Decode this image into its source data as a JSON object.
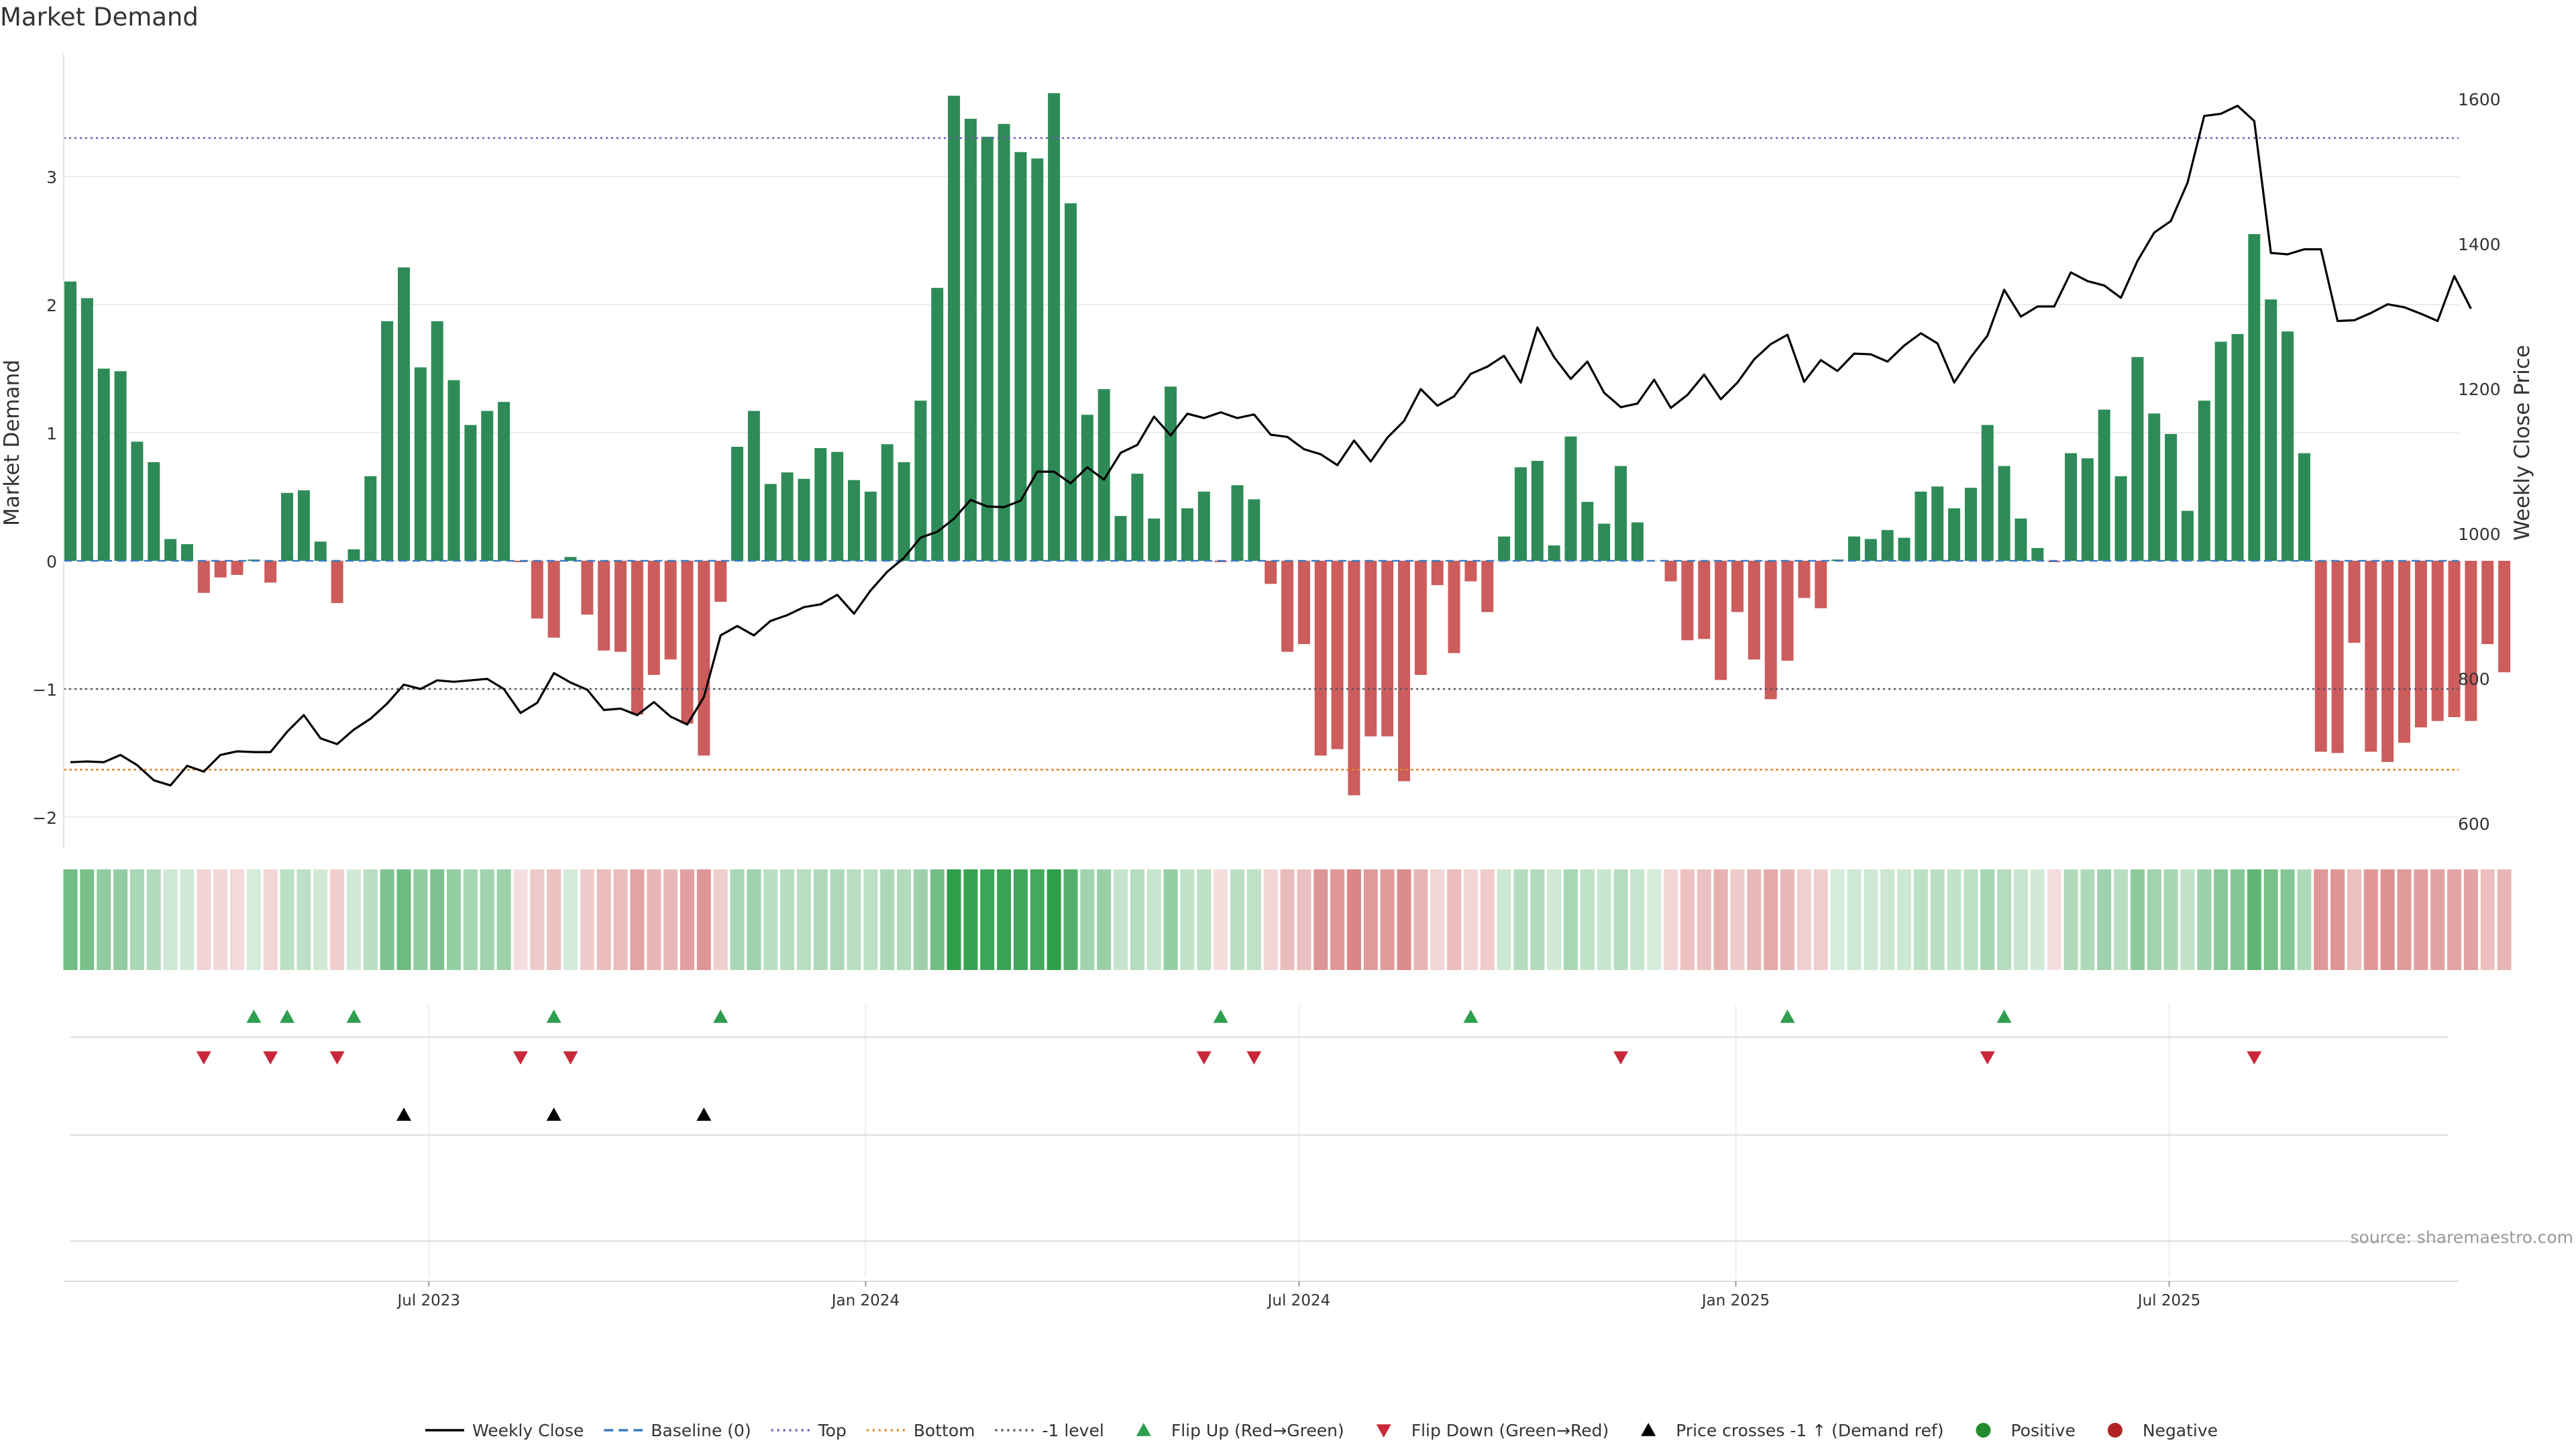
{
  "chart_data": {
    "type": "bar",
    "title": "Market Demand",
    "ylabel": "Market Demand",
    "y2label": "Weekly Close Price",
    "ylim": [
      -2.2,
      3.8
    ],
    "yticks": [
      -2,
      -1,
      0,
      1,
      2,
      3
    ],
    "ytick_labels": [
      "−2",
      "−1",
      "0",
      "1",
      "2",
      "3"
    ],
    "y2lim": [
      600,
      1640
    ],
    "y2ticks": [
      600,
      800,
      1000,
      1200,
      1400,
      1600
    ],
    "y2tick_labels": [
      "600",
      "800",
      "1000",
      "1200",
      "1400",
      "1600"
    ],
    "xtick_labels": [
      "Jul 2023",
      "Jan 2024",
      "Jul 2024",
      "Jan 2025",
      "Jul 2025"
    ],
    "xtick_weeks": [
      21.5,
      47.7,
      73.7,
      99.9,
      125.9
    ],
    "reference_lines": {
      "top": 3.3,
      "minus_one": -1.0,
      "bottom": -1.63,
      "baseline": 0
    },
    "series": [
      {
        "name": "Market Demand",
        "values": [
          2.18,
          2.05,
          1.5,
          1.48,
          0.93,
          0.77,
          0.17,
          0.13,
          -0.25,
          -0.13,
          -0.11,
          0.01,
          -0.17,
          0.53,
          0.55,
          0.15,
          -0.33,
          0.09,
          0.66,
          1.87,
          2.29,
          1.51,
          1.87,
          1.41,
          1.06,
          1.17,
          1.24,
          -0.01,
          -0.45,
          -0.6,
          0.03,
          -0.42,
          -0.7,
          -0.71,
          -1.2,
          -0.89,
          -0.77,
          -1.27,
          -1.52,
          -0.32,
          0.89,
          1.17,
          0.6,
          0.69,
          0.64,
          0.88,
          0.85,
          0.63,
          0.54,
          0.91,
          0.77,
          1.25,
          2.13,
          3.63,
          3.45,
          3.31,
          3.41,
          3.19,
          3.14,
          3.65,
          2.79,
          1.14,
          1.34,
          0.35,
          0.68,
          0.33,
          1.36,
          0.41,
          0.54,
          -0.01,
          0.59,
          0.48,
          -0.18,
          -0.71,
          -0.65,
          -1.52,
          -1.47,
          -1.83,
          -1.37,
          -1.37,
          -1.72,
          -0.89,
          -0.19,
          -0.72,
          -0.16,
          -0.4,
          0.19,
          0.73,
          0.78,
          0.12,
          0.97,
          0.46,
          0.29,
          0.74,
          0.3,
          0.0,
          -0.16,
          -0.62,
          -0.61,
          -0.93,
          -0.4,
          -0.77,
          -1.08,
          -0.78,
          -0.29,
          -0.37,
          0.01,
          0.19,
          0.17,
          0.24,
          0.18,
          0.54,
          0.58,
          0.41,
          0.57,
          1.06,
          0.74,
          0.33,
          0.1,
          -0.01,
          0.84,
          0.8,
          1.18,
          0.66,
          1.59,
          1.15,
          0.99,
          0.39,
          1.25,
          1.71,
          1.77,
          2.55,
          2.04,
          1.79,
          0.84,
          -1.49,
          -1.5,
          -0.64,
          -1.49,
          -1.57,
          -1.42,
          -1.3,
          -1.25,
          -1.22,
          -1.25,
          -0.65,
          -0.87
        ]
      },
      {
        "name": "Weekly Close",
        "values": [
          685,
          686,
          685,
          695,
          681,
          660,
          653,
          680,
          672,
          695,
          700,
          699,
          699,
          727,
          750,
          718,
          710,
          730,
          745,
          766,
          792,
          786,
          798,
          796,
          798,
          800,
          786,
          753,
          767,
          808,
          795,
          785,
          757,
          759,
          750,
          768,
          748,
          737,
          775,
          860,
          873,
          860,
          880,
          888,
          899,
          903,
          916,
          890,
          922,
          948,
          967,
          995,
          1003,
          1021,
          1047,
          1038,
          1037,
          1046,
          1086,
          1086,
          1070,
          1092,
          1075,
          1112,
          1123,
          1162,
          1136,
          1166,
          1160,
          1168,
          1160,
          1165,
          1137,
          1134,
          1117,
          1110,
          1095,
          1129,
          1100,
          1133,
          1156,
          1200,
          1177,
          1190,
          1221,
          1231,
          1246,
          1209,
          1285,
          1244,
          1214,
          1238,
          1195,
          1175,
          1180,
          1213,
          1174,
          1192,
          1220,
          1186,
          1209,
          1241,
          1262,
          1275,
          1210,
          1240,
          1225,
          1249,
          1248,
          1238,
          1260,
          1277,
          1263,
          1209,
          1244,
          1274,
          1337,
          1300,
          1314,
          1314,
          1361,
          1349,
          1343,
          1326,
          1377,
          1416,
          1432,
          1485,
          1577,
          1580,
          1591,
          1570,
          1388,
          1386,
          1393,
          1393,
          1294,
          1295,
          1305,
          1317,
          1313,
          1304,
          1294,
          1356,
          1311
        ]
      }
    ],
    "panels": {
      "flip_up_weeks": [
        11,
        13,
        17,
        29,
        39,
        69,
        84,
        103,
        116
      ],
      "flip_down_weeks": [
        8,
        12,
        16,
        27,
        30,
        68,
        71,
        93,
        115,
        131
      ],
      "price_cross_weeks": [
        20,
        29,
        38
      ]
    },
    "legend_position": "bottom-center",
    "legend": [
      {
        "label": "Weekly Close",
        "style": "solid-line",
        "color": "#000000"
      },
      {
        "label": "Baseline (0)",
        "style": "dashed-line",
        "color": "#3a7bbf"
      },
      {
        "label": "Top",
        "style": "dotted-line",
        "color": "#6b5fb5"
      },
      {
        "label": "Bottom",
        "style": "dotted-line",
        "color": "#e08a2a"
      },
      {
        "label": "-1 level",
        "style": "dotted-line",
        "color": "#555566"
      },
      {
        "label": "Flip Up (Red→Green)",
        "style": "triangle-up",
        "color": "#2e9e4f"
      },
      {
        "label": "Flip Down (Green→Red)",
        "style": "triangle-down",
        "color": "#c8283a"
      },
      {
        "label": "Price crosses -1 ↑ (Demand ref)",
        "style": "triangle-up",
        "color": "#000000"
      },
      {
        "label": "Positive",
        "style": "dot",
        "color": "#238b2e"
      },
      {
        "label": "Negative",
        "style": "dot",
        "color": "#b22424"
      }
    ],
    "colors": {
      "positive": "#2e8b57",
      "negative": "#cd5c5c",
      "price": "#000000",
      "heat_positive": "#2e9e4a",
      "heat_negative": "#cd5c5c"
    }
  },
  "source_note": "source: sharemaestro.com"
}
